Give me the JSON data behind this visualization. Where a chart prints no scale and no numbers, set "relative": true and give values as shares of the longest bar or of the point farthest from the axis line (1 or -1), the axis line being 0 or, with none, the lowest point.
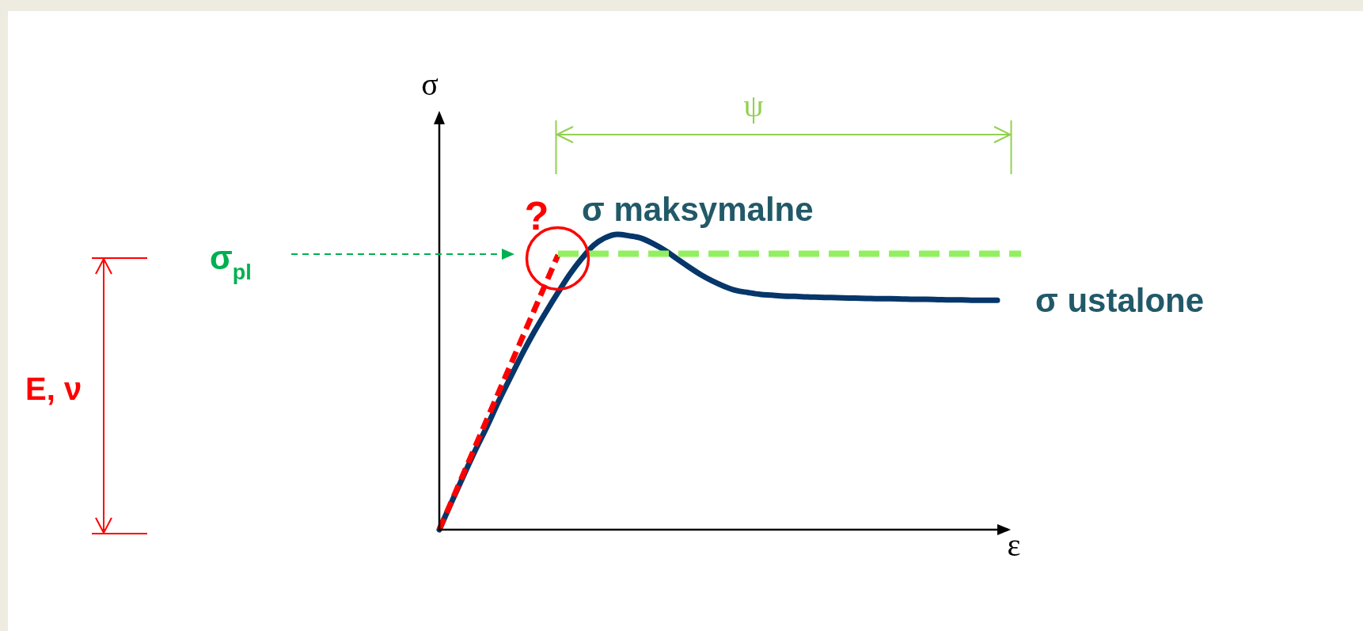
{
  "chart_data": {
    "type": "line",
    "relative": true,
    "categories": [
      null,
      null,
      null,
      null,
      null,
      null,
      null,
      null,
      null,
      null,
      null,
      null,
      null,
      null,
      null,
      null,
      null,
      null,
      null,
      null,
      null,
      null,
      null,
      null,
      null,
      null,
      null,
      null,
      null,
      null,
      null,
      null,
      null,
      null,
      null,
      null,
      null,
      null,
      null,
      null,
      null,
      null,
      null,
      null,
      null,
      null,
      null,
      null,
      null,
      null
    ],
    "series": [
      {
        "color": "#06366a",
        "values": [
          0,
          0.09,
          0.179,
          0.266,
          0.348,
          0.435,
          0.516,
          0.596,
          0.67,
          0.738,
          0.803,
          0.865,
          0.918,
          0.963,
          0.989,
          1,
          0.995,
          0.987,
          0.969,
          0.946,
          0.918,
          0.89,
          0.864,
          0.842,
          0.824,
          0.81,
          0.803,
          0.797,
          0.794,
          0.791,
          0.79,
          0.788,
          0.787,
          0.786,
          0.785,
          0.784,
          0.783,
          0.782,
          0.782,
          0.781,
          0.78,
          0.78,
          0.779,
          0.778,
          0.778,
          0.777,
          0.777,
          0.777,
          null,
          null
        ]
      },
      {
        "color": "#ff0000",
        "line_style": "dashed",
        "values": [
          0,
          0.093,
          0.186,
          0.279,
          0.372,
          0.465,
          0.558,
          0.651,
          0.744,
          0.837,
          0.93,
          null,
          null,
          null,
          null,
          null,
          null,
          null,
          null,
          null,
          null,
          null,
          null,
          null,
          null,
          null,
          null,
          null,
          null,
          null,
          null,
          null,
          null,
          null,
          null,
          null,
          null,
          null,
          null,
          null,
          null,
          null,
          null,
          null,
          null,
          null,
          null,
          null,
          null,
          null
        ]
      },
      {
        "color": "#92f060",
        "line_style": "dashed",
        "values": [
          null,
          null,
          null,
          null,
          null,
          null,
          null,
          null,
          null,
          null,
          0.934,
          0.934,
          0.934,
          0.934,
          0.934,
          0.934,
          0.934,
          0.934,
          0.934,
          0.934,
          0.934,
          0.934,
          0.934,
          0.934,
          0.934,
          0.934,
          0.934,
          0.934,
          0.934,
          0.934,
          0.934,
          0.934,
          0.934,
          0.934,
          0.934,
          0.934,
          0.934,
          0.934,
          0.934,
          0.934,
          0.934,
          0.934,
          0.934,
          0.934,
          0.934,
          0.934,
          0.934,
          0.934,
          0.934,
          0.934
        ]
      }
    ],
    "xlabel": "ε",
    "ylabel": "σ",
    "annotations": [
      "σ maksymalne",
      "σ ustalone",
      "σ$_{pl}$",
      "?",
      "ψ",
      "E, ν"
    ],
    "marker": "none",
    "legend": false,
    "grid": false,
    "tick_labels": false
  }
}
